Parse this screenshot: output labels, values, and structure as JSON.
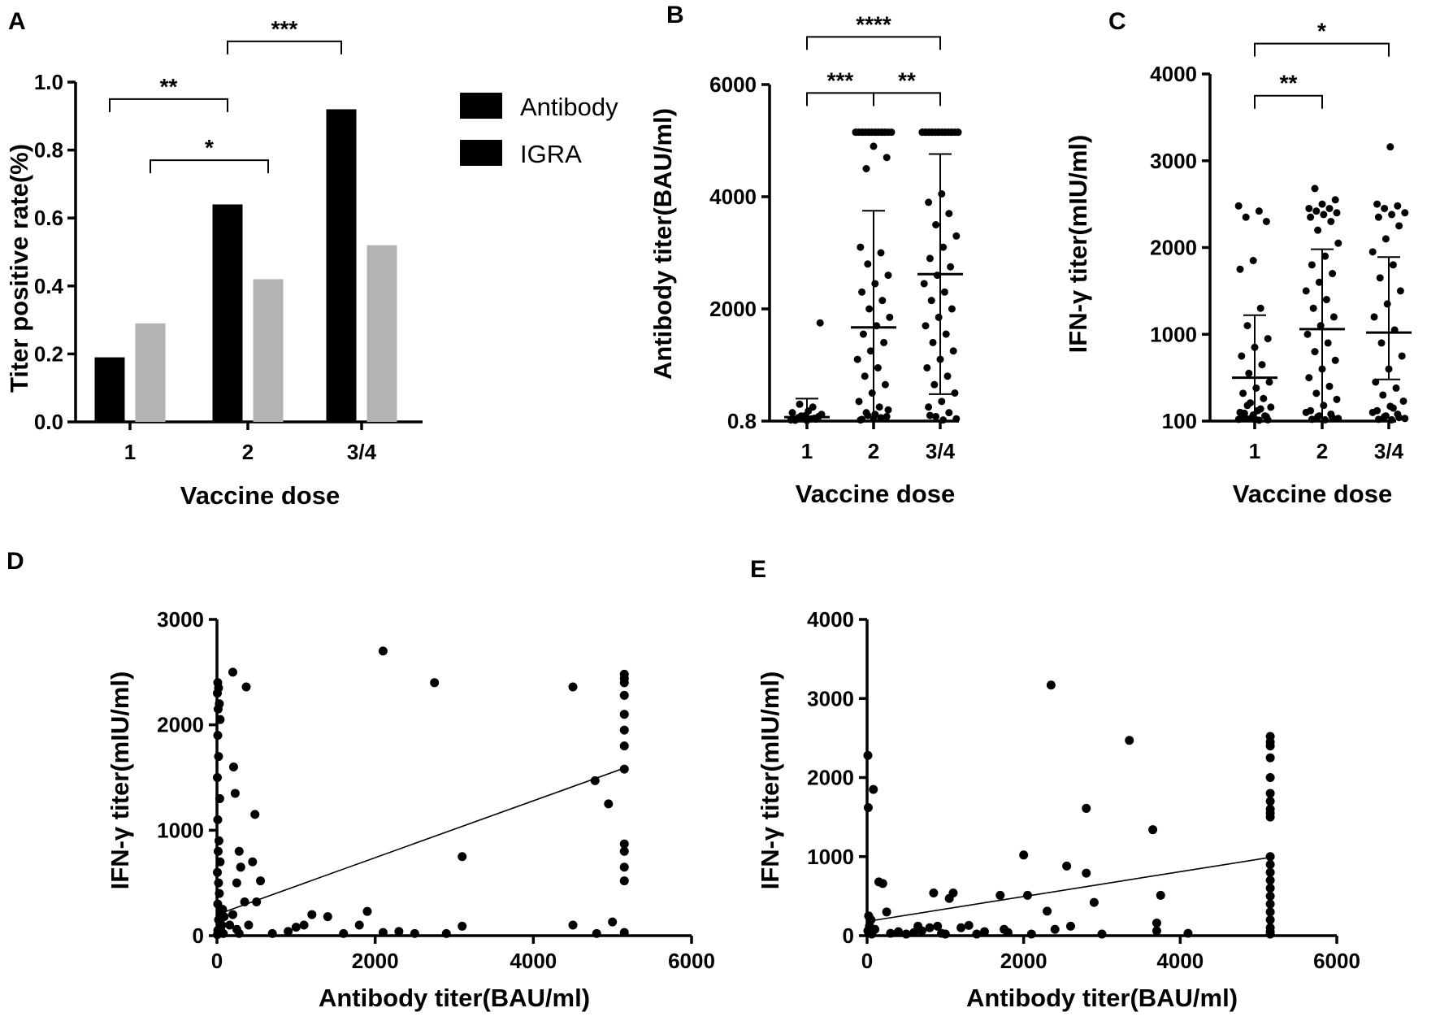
{
  "colors": {
    "antibody": "#000000",
    "igra": "#b3b3b3",
    "ink": "#000000"
  },
  "chart_data": [
    {
      "panel": "A",
      "type": "bar",
      "xlabel": "Vaccine dose",
      "ylabel": "Titer positive rate(%)",
      "categories": [
        "1",
        "2",
        "3/4"
      ],
      "series": [
        {
          "name": "Antibody",
          "values": [
            0.19,
            0.64,
            0.92
          ]
        },
        {
          "name": "IGRA",
          "values": [
            0.29,
            0.42,
            0.52
          ]
        }
      ],
      "ylim": [
        0,
        1.0
      ],
      "yticks": [
        {
          "v": 0,
          "t": "0.0"
        },
        {
          "v": 0.2,
          "t": "0.2"
        },
        {
          "v": 0.4,
          "t": "0.4"
        },
        {
          "v": 0.6,
          "t": "0.6"
        },
        {
          "v": 0.8,
          "t": "0.8"
        },
        {
          "v": 1.0,
          "t": "1.0"
        }
      ],
      "legend": "right",
      "brackets": [
        {
          "from": "1",
          "fs": 0,
          "to": "2",
          "ts": 0,
          "label": "**",
          "y": 0.95
        },
        {
          "from": "1",
          "fs": 1,
          "to": "2",
          "ts": 1,
          "label": "*",
          "y": 0.77
        },
        {
          "from": "2",
          "fs": 0,
          "to": "3/4",
          "ts": 0,
          "label": "***",
          "y": 1.12
        }
      ]
    },
    {
      "panel": "B",
      "type": "scatter",
      "xlabel": "Vaccine dose",
      "ylabel": "Antibody titer(BAU/ml)",
      "categories": [
        "1",
        "2",
        "3/4"
      ],
      "ylim": [
        0,
        6000
      ],
      "yticks": [
        {
          "v": 0,
          "t": "0.8"
        },
        {
          "v": 2000,
          "t": "2000"
        },
        {
          "v": 4000,
          "t": "4000"
        },
        {
          "v": 6000,
          "t": "6000"
        }
      ],
      "groups": [
        {
          "mean": 70,
          "sd_upper": 400,
          "sd_lower": 0,
          "ceiling": 5150,
          "n_ceiling": 0,
          "points": [
            20,
            40,
            60,
            80,
            100,
            150,
            250,
            300,
            1750,
            10,
            30,
            50,
            90,
            120,
            180,
            15,
            35,
            55
          ]
        },
        {
          "mean": 1670,
          "sd_upper": 3750,
          "sd_lower": 0,
          "ceiling": 5150,
          "n_ceiling": 22,
          "points": [
            4500,
            4700,
            4900,
            3100,
            3000,
            2800,
            2600,
            2450,
            2300,
            2150,
            2000,
            1850,
            1700,
            1550,
            1400,
            1250,
            1100,
            950,
            800,
            650,
            500,
            350,
            250,
            150,
            80,
            40,
            20,
            60,
            100,
            200,
            120,
            30
          ]
        },
        {
          "mean": 2620,
          "sd_upper": 4760,
          "sd_lower": 480,
          "ceiling": 5150,
          "n_ceiling": 30,
          "points": [
            4050,
            3900,
            3700,
            3500,
            3300,
            3100,
            2900,
            2750,
            2600,
            2450,
            2300,
            2150,
            2000,
            1850,
            1700,
            1550,
            1400,
            1250,
            1100,
            950,
            800,
            650,
            500,
            350,
            250,
            150,
            80,
            40,
            20,
            100
          ]
        }
      ],
      "brackets": [
        {
          "from": "1",
          "to": "2",
          "label": "***",
          "y": 5850
        },
        {
          "from": "2",
          "to": "3/4",
          "label": "**",
          "y": 5850
        },
        {
          "from": "1",
          "to": "3/4",
          "label": "****",
          "y": 6850
        }
      ]
    },
    {
      "panel": "C",
      "type": "scatter",
      "xlabel": "Vaccine dose",
      "ylabel": "IFN-γ titer(mIU/ml)",
      "categories": [
        "1",
        "2",
        "3/4"
      ],
      "ylim": [
        0,
        4000
      ],
      "yticks": [
        {
          "v": 0,
          "t": "100"
        },
        {
          "v": 1000,
          "t": "1000"
        },
        {
          "v": 2000,
          "t": "2000"
        },
        {
          "v": 3000,
          "t": "3000"
        },
        {
          "v": 4000,
          "t": "4000"
        }
      ],
      "groups": [
        {
          "mean": 500,
          "sd_upper": 1220,
          "sd_lower": 0,
          "points": [
            2480,
            2420,
            2350,
            2300,
            1850,
            1750,
            1300,
            1100,
            950,
            850,
            750,
            650,
            550,
            450,
            380,
            320,
            260,
            210,
            160,
            120,
            90,
            60,
            40,
            20,
            10,
            30,
            50,
            70,
            100,
            140,
            180,
            15,
            25,
            45
          ]
        },
        {
          "mean": 1060,
          "sd_upper": 1980,
          "sd_lower": 0,
          "points": [
            2680,
            2550,
            2500,
            2450,
            2450,
            2420,
            2400,
            2380,
            2350,
            2300,
            2200,
            2050,
            1900,
            1800,
            1700,
            1600,
            1500,
            1400,
            1300,
            1200,
            1100,
            1000,
            900,
            800,
            700,
            600,
            500,
            400,
            320,
            250,
            180,
            120,
            80,
            50,
            30,
            15,
            20,
            40,
            60,
            100
          ]
        },
        {
          "mean": 1020,
          "sd_upper": 1890,
          "sd_lower": 480,
          "points": [
            3160,
            2500,
            2480,
            2450,
            2400,
            2380,
            2350,
            2250,
            2100,
            1950,
            1800,
            1650,
            1500,
            1350,
            1200,
            1050,
            900,
            750,
            600,
            450,
            380,
            300,
            230,
            170,
            120,
            80,
            50,
            30,
            15,
            20,
            40,
            60,
            100,
            150
          ]
        }
      ],
      "brackets": [
        {
          "from": "1",
          "to": "2",
          "label": "**",
          "y": 3750
        },
        {
          "from": "1",
          "to": "3/4",
          "label": "*",
          "y": 4350
        }
      ]
    },
    {
      "panel": "D",
      "type": "scatter",
      "xlabel": "Antibody titer(BAU/ml)",
      "ylabel": "IFN-γ titer(mIU/ml)",
      "xlim": [
        0,
        6000
      ],
      "ylim": [
        0,
        3000
      ],
      "xticks": [
        {
          "v": 0,
          "t": "0"
        },
        {
          "v": 2000,
          "t": "2000"
        },
        {
          "v": 4000,
          "t": "4000"
        },
        {
          "v": 6000,
          "t": "6000"
        }
      ],
      "yticks": [
        {
          "v": 0,
          "t": "0"
        },
        {
          "v": 1000,
          "t": "1000"
        },
        {
          "v": 2000,
          "t": "2000"
        },
        {
          "v": 3000,
          "t": "3000"
        }
      ],
      "fit": [
        [
          0,
          200
        ],
        [
          5150,
          1590
        ]
      ],
      "points": [
        [
          10,
          2400
        ],
        [
          20,
          2350
        ],
        [
          5,
          2300
        ],
        [
          30,
          2200
        ],
        [
          15,
          2150
        ],
        [
          40,
          2050
        ],
        [
          10,
          1900
        ],
        [
          20,
          1700
        ],
        [
          5,
          1500
        ],
        [
          35,
          1300
        ],
        [
          10,
          1100
        ],
        [
          25,
          900
        ],
        [
          15,
          800
        ],
        [
          40,
          700
        ],
        [
          5,
          600
        ],
        [
          20,
          500
        ],
        [
          30,
          400
        ],
        [
          10,
          300
        ],
        [
          50,
          200
        ],
        [
          20,
          150
        ],
        [
          60,
          100
        ],
        [
          10,
          50
        ],
        [
          30,
          30
        ],
        [
          80,
          20
        ],
        [
          5,
          10
        ],
        [
          45,
          70
        ],
        [
          70,
          250
        ],
        [
          90,
          180
        ],
        [
          200,
          2500
        ],
        [
          370,
          2360
        ],
        [
          210,
          1600
        ],
        [
          230,
          1350
        ],
        [
          280,
          800
        ],
        [
          300,
          650
        ],
        [
          250,
          500
        ],
        [
          350,
          320
        ],
        [
          200,
          200
        ],
        [
          250,
          60
        ],
        [
          280,
          20
        ],
        [
          300,
          650
        ],
        [
          160,
          100
        ],
        [
          480,
          1150
        ],
        [
          450,
          700
        ],
        [
          550,
          520
        ],
        [
          500,
          320
        ],
        [
          400,
          100
        ],
        [
          700,
          20
        ],
        [
          900,
          40
        ],
        [
          1000,
          80
        ],
        [
          1100,
          100
        ],
        [
          1200,
          200
        ],
        [
          1400,
          180
        ],
        [
          1600,
          20
        ],
        [
          1800,
          100
        ],
        [
          1900,
          230
        ],
        [
          2100,
          30
        ],
        [
          2300,
          40
        ],
        [
          2500,
          20
        ],
        [
          2900,
          20
        ],
        [
          3100,
          90
        ],
        [
          2100,
          2700
        ],
        [
          2750,
          2400
        ],
        [
          3100,
          750
        ],
        [
          4500,
          2360
        ],
        [
          4500,
          100
        ],
        [
          4780,
          1470
        ],
        [
          4950,
          1250
        ],
        [
          5000,
          130
        ],
        [
          4800,
          20
        ],
        [
          5150,
          2480
        ],
        [
          5150,
          2440
        ],
        [
          5150,
          2400
        ],
        [
          5150,
          2280
        ],
        [
          5150,
          2100
        ],
        [
          5150,
          1950
        ],
        [
          5150,
          1800
        ],
        [
          5150,
          1580
        ],
        [
          5150,
          870
        ],
        [
          5150,
          800
        ],
        [
          5150,
          650
        ],
        [
          5150,
          520
        ],
        [
          5150,
          30
        ]
      ]
    },
    {
      "panel": "E",
      "type": "scatter",
      "xlabel": "Antibody titer(BAU/ml)",
      "ylabel": "IFN-γ titer(mIU/ml)",
      "xlim": [
        0,
        6000
      ],
      "ylim": [
        0,
        4000
      ],
      "xticks": [
        {
          "v": 0,
          "t": "0"
        },
        {
          "v": 2000,
          "t": "2000"
        },
        {
          "v": 4000,
          "t": "4000"
        },
        {
          "v": 6000,
          "t": "6000"
        }
      ],
      "yticks": [
        {
          "v": 0,
          "t": "0"
        },
        {
          "v": 1000,
          "t": "1000"
        },
        {
          "v": 2000,
          "t": "2000"
        },
        {
          "v": 3000,
          "t": "3000"
        },
        {
          "v": 4000,
          "t": "4000"
        }
      ],
      "fit": [
        [
          0,
          180
        ],
        [
          5150,
          990
        ]
      ],
      "points": [
        [
          10,
          2280
        ],
        [
          15,
          1620
        ],
        [
          80,
          1850
        ],
        [
          150,
          680
        ],
        [
          200,
          660
        ],
        [
          250,
          300
        ],
        [
          20,
          250
        ],
        [
          50,
          200
        ],
        [
          30,
          120
        ],
        [
          10,
          60
        ],
        [
          60,
          20
        ],
        [
          100,
          80
        ],
        [
          300,
          30
        ],
        [
          400,
          50
        ],
        [
          500,
          20
        ],
        [
          600,
          40
        ],
        [
          650,
          120
        ],
        [
          700,
          60
        ],
        [
          800,
          100
        ],
        [
          850,
          540
        ],
        [
          900,
          120
        ],
        [
          950,
          30
        ],
        [
          1000,
          20
        ],
        [
          1050,
          470
        ],
        [
          1100,
          540
        ],
        [
          1200,
          100
        ],
        [
          1300,
          130
        ],
        [
          1400,
          20
        ],
        [
          1500,
          50
        ],
        [
          1700,
          510
        ],
        [
          1750,
          80
        ],
        [
          1800,
          40
        ],
        [
          2000,
          1020
        ],
        [
          2050,
          510
        ],
        [
          2100,
          20
        ],
        [
          2300,
          310
        ],
        [
          2350,
          3170
        ],
        [
          2400,
          80
        ],
        [
          2550,
          880
        ],
        [
          2600,
          120
        ],
        [
          2800,
          1610
        ],
        [
          2800,
          790
        ],
        [
          2900,
          420
        ],
        [
          3000,
          20
        ],
        [
          3350,
          2470
        ],
        [
          3650,
          1340
        ],
        [
          3700,
          60
        ],
        [
          3700,
          160
        ],
        [
          3750,
          510
        ],
        [
          4100,
          30
        ],
        [
          5150,
          2520
        ],
        [
          5150,
          2450
        ],
        [
          5150,
          2400
        ],
        [
          5150,
          2250
        ],
        [
          5150,
          2000
        ],
        [
          5150,
          1800
        ],
        [
          5150,
          1700
        ],
        [
          5150,
          1600
        ],
        [
          5150,
          1550
        ],
        [
          5150,
          1500
        ],
        [
          5150,
          1000
        ],
        [
          5150,
          900
        ],
        [
          5150,
          800
        ],
        [
          5150,
          700
        ],
        [
          5150,
          600
        ],
        [
          5150,
          500
        ],
        [
          5150,
          400
        ],
        [
          5150,
          300
        ],
        [
          5150,
          200
        ],
        [
          5150,
          100
        ],
        [
          5150,
          50
        ],
        [
          5150,
          20
        ]
      ]
    }
  ]
}
